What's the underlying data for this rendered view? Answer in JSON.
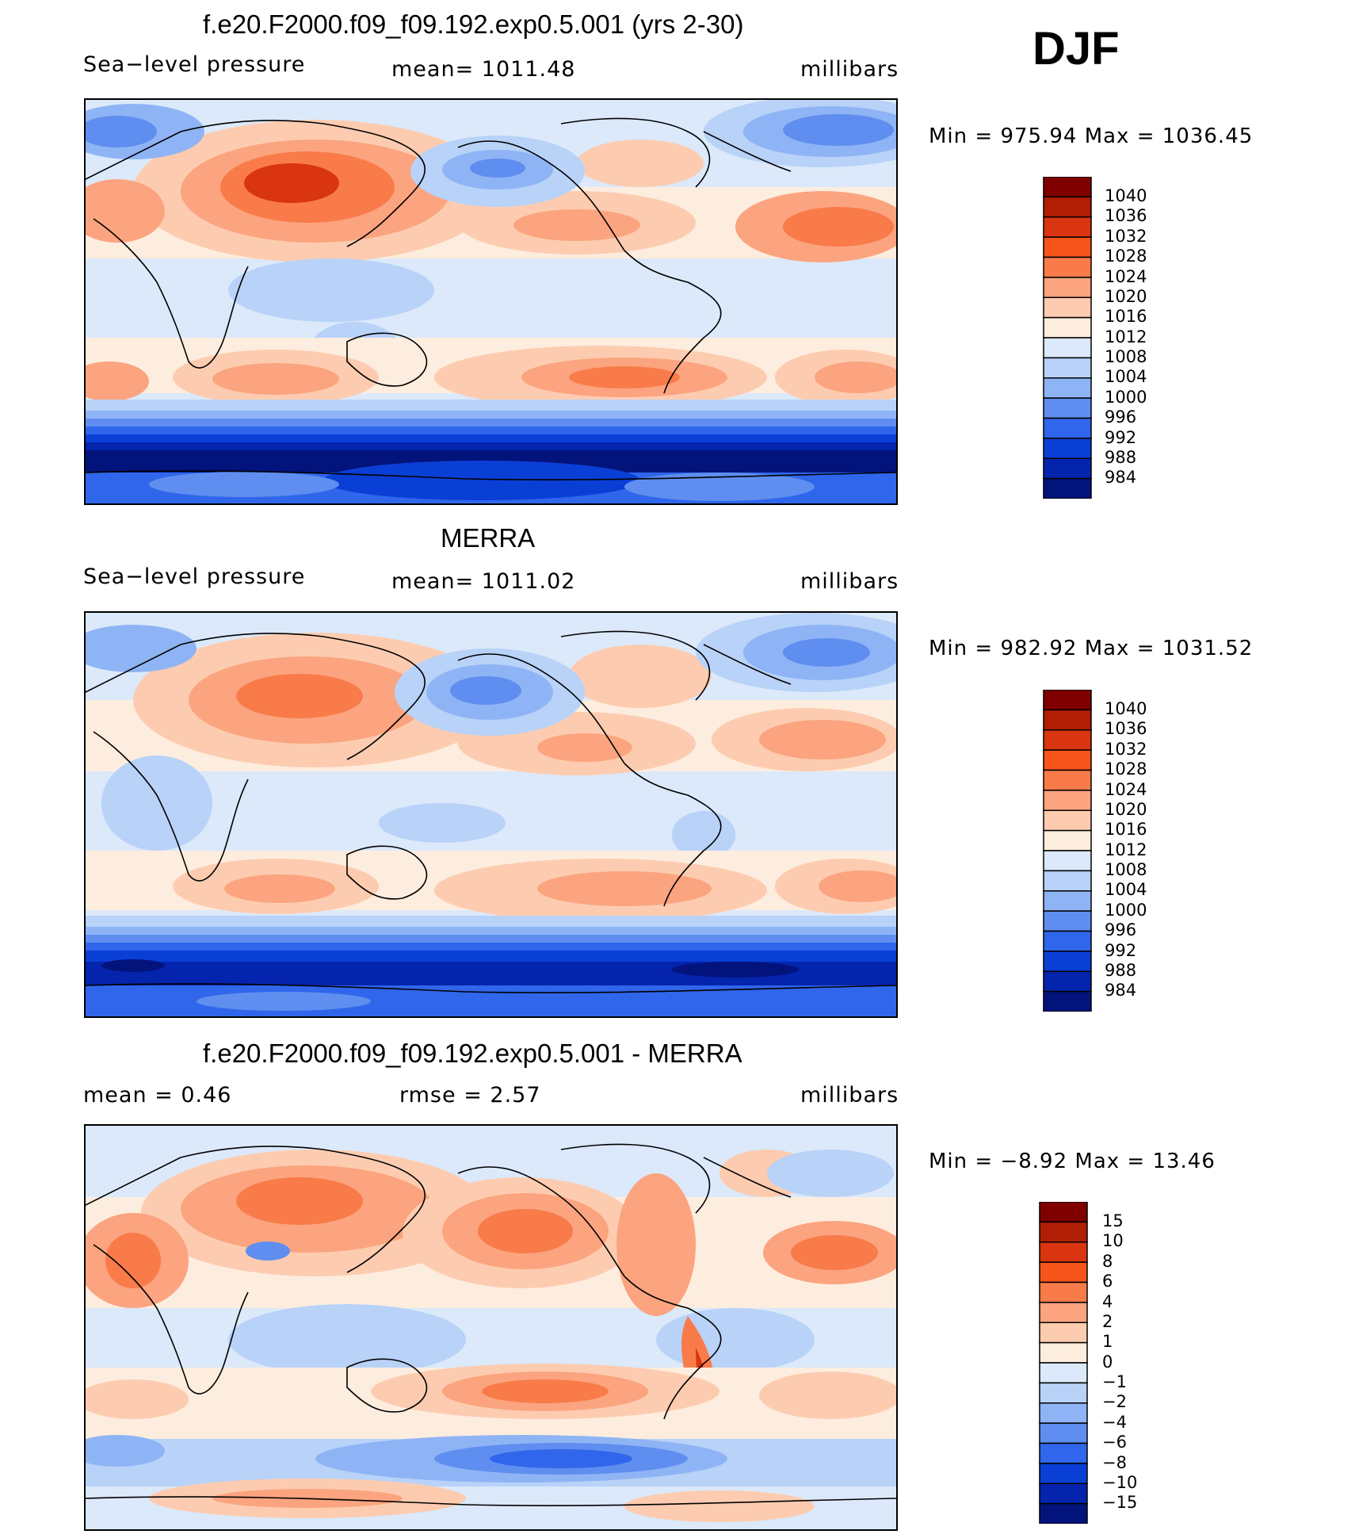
{
  "season": "DJF",
  "panels": [
    {
      "title": "f.e20.F2000.f09_f09.192.exp0.5.001 (yrs 2-30)",
      "left_label": "Sea−level  pressure",
      "stat_text": "mean=  1011.48",
      "units": "millibars",
      "minmax": "Min  =  975.94  Max  =  1036.45",
      "colorbar_labels": [
        "1040",
        "1036",
        "1032",
        "1028",
        "1024",
        "1020",
        "1016",
        "1012",
        "1008",
        "1004",
        "1000",
        "996",
        "992",
        "988",
        "984"
      ]
    },
    {
      "title": "MERRA",
      "left_label": "Sea−level  pressure",
      "stat_text": "mean=  1011.02",
      "units": "millibars",
      "minmax": "Min  =  982.92  Max  =  1031.52",
      "colorbar_labels": [
        "1040",
        "1036",
        "1032",
        "1028",
        "1024",
        "1020",
        "1016",
        "1012",
        "1008",
        "1004",
        "1000",
        "996",
        "992",
        "988",
        "984"
      ]
    },
    {
      "title": "f.e20.F2000.f09_f09.192.exp0.5.001 - MERRA",
      "left_label": "mean  =     0.46",
      "stat_text": "rmse  =     2.57",
      "units": "millibars",
      "minmax": "Min  =   −8.92  Max  =    13.46",
      "colorbar_labels": [
        "15",
        "10",
        "8",
        "6",
        "4",
        "2",
        "1",
        "0",
        "−1",
        "−2",
        "−4",
        "−6",
        "−8",
        "−10",
        "−15"
      ]
    }
  ],
  "colors": {
    "palette": [
      "#800000",
      "#b01e05",
      "#d93510",
      "#f7541b",
      "#f97b4a",
      "#fba47f",
      "#fdccb0",
      "#fdeddf",
      "#dbe9fa",
      "#b8d2f8",
      "#8fb4f5",
      "#5f8ef0",
      "#2f66eb",
      "#0a3fd6",
      "#0524ad",
      "#02137c"
    ]
  }
}
